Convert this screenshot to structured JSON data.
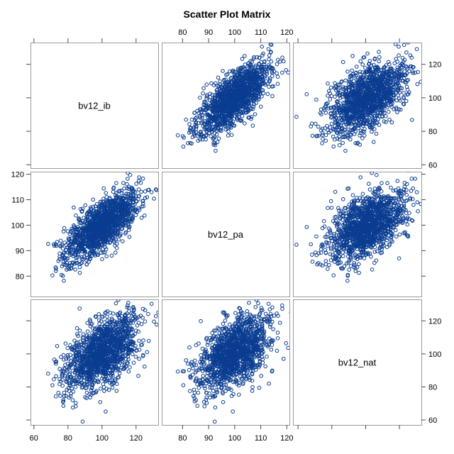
{
  "chart_data": {
    "type": "scatter",
    "title": "Scatter Plot Matrix",
    "variables": [
      "bv12_ib",
      "bv12_pa",
      "bv12_nat"
    ],
    "marker_color": "#0a3d91",
    "axes": {
      "bv12_ib": {
        "range": [
          58,
          133
        ],
        "ticks": [
          60,
          80,
          100,
          120
        ]
      },
      "bv12_pa": {
        "range": [
          72,
          121
        ],
        "ticks": [
          80,
          90,
          100,
          110,
          120
        ]
      },
      "bv12_nat": {
        "range": [
          57,
          133
        ],
        "ticks": [
          60,
          80,
          100,
          120
        ]
      }
    },
    "axis_placement": {
      "top": [
        "bv12_pa"
      ],
      "bottom": [
        "bv12_ib",
        "bv12_pa"
      ],
      "left": [
        "bv12_pa"
      ],
      "right": [
        "bv12_ib",
        "bv12_nat"
      ]
    },
    "distribution": {
      "n_points": 1400,
      "bv12_ib": {
        "mean": 100,
        "sd": 11
      },
      "bv12_pa": {
        "mean": 100,
        "sd": 7
      },
      "bv12_nat": {
        "mean": 101,
        "sd": 11
      },
      "correlations": {
        "ib_pa": 0.72,
        "ib_nat": 0.55,
        "pa_nat": 0.5
      }
    },
    "grid": false,
    "legend": "none"
  }
}
